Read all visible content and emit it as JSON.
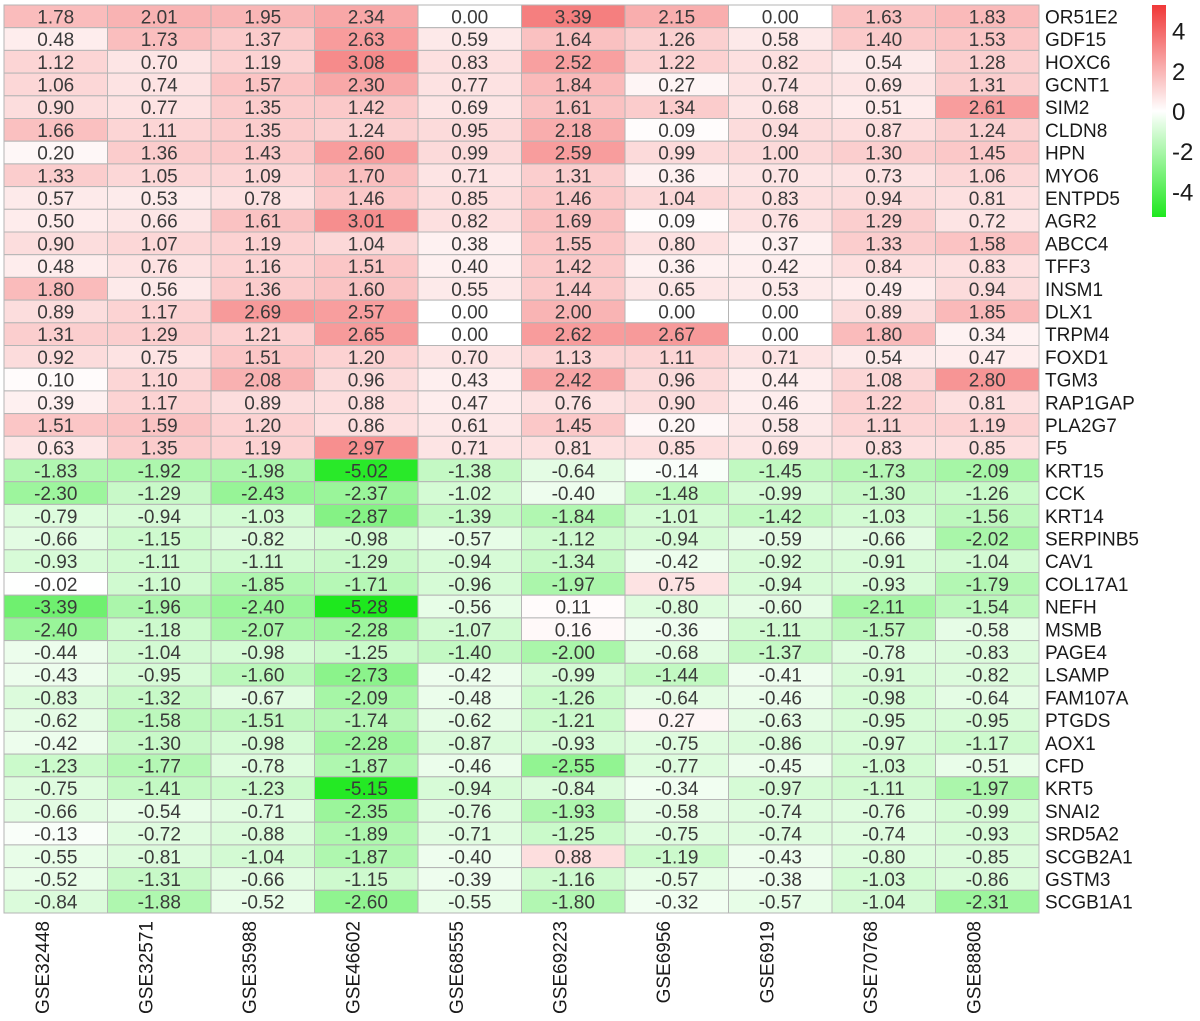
{
  "chart_data": {
    "type": "heatmap",
    "title": "",
    "xlabel": "",
    "ylabel": "",
    "columns": [
      "GSE32448",
      "GSE32571",
      "GSE35988",
      "GSE46602",
      "GSE68555",
      "GSE69223",
      "GSE6956",
      "GSE6919",
      "GSE70768",
      "GSE88808"
    ],
    "rows": [
      "OR51E2",
      "GDF15",
      "HOXC6",
      "GCNT1",
      "SIM2",
      "CLDN8",
      "HPN",
      "MYO6",
      "ENTPD5",
      "AGR2",
      "ABCC4",
      "TFF3",
      "INSM1",
      "DLX1",
      "TRPM4",
      "FOXD1",
      "TGM3",
      "RAP1GAP",
      "PLA2G7",
      "F5",
      "KRT15",
      "CCK",
      "KRT14",
      "SERPINB5",
      "CAV1",
      "COL17A1",
      "NEFH",
      "MSMB",
      "PAGE4",
      "LSAMP",
      "FAM107A",
      "PTGDS",
      "AOX1",
      "CFD",
      "KRT5",
      "SNAI2",
      "SRD5A2",
      "SCGB2A1",
      "GSTM3",
      "SCGB1A1"
    ],
    "values": [
      [
        1.78,
        2.01,
        1.95,
        2.34,
        0.0,
        3.39,
        2.15,
        0.0,
        1.63,
        1.83
      ],
      [
        0.48,
        1.73,
        1.37,
        2.63,
        0.59,
        1.64,
        1.26,
        0.58,
        1.4,
        1.53
      ],
      [
        1.12,
        0.7,
        1.19,
        3.08,
        0.83,
        2.52,
        1.22,
        0.82,
        0.54,
        1.28
      ],
      [
        1.06,
        0.74,
        1.57,
        2.3,
        0.77,
        1.84,
        0.27,
        0.74,
        0.69,
        1.31
      ],
      [
        0.9,
        0.77,
        1.35,
        1.42,
        0.69,
        1.61,
        1.34,
        0.68,
        0.51,
        2.61
      ],
      [
        1.66,
        1.11,
        1.35,
        1.24,
        0.95,
        2.18,
        0.09,
        0.94,
        0.87,
        1.24
      ],
      [
        0.2,
        1.36,
        1.43,
        2.6,
        0.99,
        2.59,
        0.99,
        1.0,
        1.3,
        1.45
      ],
      [
        1.33,
        1.05,
        1.09,
        1.7,
        0.71,
        1.31,
        0.36,
        0.7,
        0.73,
        1.06
      ],
      [
        0.57,
        0.53,
        0.78,
        1.46,
        0.85,
        1.46,
        1.04,
        0.83,
        0.94,
        0.81
      ],
      [
        0.5,
        0.66,
        1.61,
        3.01,
        0.82,
        1.69,
        0.09,
        0.76,
        1.29,
        0.72
      ],
      [
        0.9,
        1.07,
        1.19,
        1.04,
        0.38,
        1.55,
        0.8,
        0.37,
        1.33,
        1.58
      ],
      [
        0.48,
        0.76,
        1.16,
        1.51,
        0.4,
        1.42,
        0.36,
        0.42,
        0.84,
        0.83
      ],
      [
        1.8,
        0.56,
        1.36,
        1.6,
        0.55,
        1.44,
        0.65,
        0.53,
        0.49,
        0.94
      ],
      [
        0.89,
        1.17,
        2.69,
        2.57,
        0.0,
        2.0,
        0.0,
        0.0,
        0.89,
        1.85
      ],
      [
        1.31,
        1.29,
        1.21,
        2.65,
        0.0,
        2.62,
        2.67,
        0.0,
        1.8,
        0.34
      ],
      [
        0.92,
        0.75,
        1.51,
        1.2,
        0.7,
        1.13,
        1.11,
        0.71,
        0.54,
        0.47
      ],
      [
        0.1,
        1.1,
        2.08,
        0.96,
        0.43,
        2.42,
        0.96,
        0.44,
        1.08,
        2.8
      ],
      [
        0.39,
        1.17,
        0.89,
        0.88,
        0.47,
        0.76,
        0.9,
        0.46,
        1.22,
        0.81
      ],
      [
        1.51,
        1.59,
        1.2,
        0.86,
        0.61,
        1.45,
        0.2,
        0.58,
        1.11,
        1.19
      ],
      [
        0.63,
        1.35,
        1.19,
        2.97,
        0.71,
        0.81,
        0.85,
        0.69,
        0.83,
        0.85
      ],
      [
        -1.83,
        -1.92,
        -1.98,
        -5.02,
        -1.38,
        -0.64,
        -0.14,
        -1.45,
        -1.73,
        -2.09
      ],
      [
        -2.3,
        -1.29,
        -2.43,
        -2.37,
        -1.02,
        -0.4,
        -1.48,
        -0.99,
        -1.3,
        -1.26
      ],
      [
        -0.79,
        -0.94,
        -1.03,
        -2.87,
        -1.39,
        -1.84,
        -1.01,
        -1.42,
        -1.03,
        -1.56
      ],
      [
        -0.66,
        -1.15,
        -0.82,
        -0.98,
        -0.57,
        -1.12,
        -0.94,
        -0.59,
        -0.66,
        -2.02
      ],
      [
        -0.93,
        -1.11,
        -1.11,
        -1.29,
        -0.94,
        -1.34,
        -0.42,
        -0.92,
        -0.91,
        -1.04
      ],
      [
        -0.02,
        -1.1,
        -1.85,
        -1.71,
        -0.96,
        -1.97,
        0.75,
        -0.94,
        -0.93,
        -1.79
      ],
      [
        -3.39,
        -1.96,
        -2.4,
        -5.28,
        -0.56,
        0.11,
        -0.8,
        -0.6,
        -2.11,
        -1.54
      ],
      [
        -2.4,
        -1.18,
        -2.07,
        -2.28,
        -1.07,
        0.16,
        -0.36,
        -1.11,
        -1.57,
        -0.58
      ],
      [
        -0.44,
        -1.04,
        -0.98,
        -1.25,
        -1.4,
        -2.0,
        -0.68,
        -1.37,
        -0.78,
        -0.83
      ],
      [
        -0.43,
        -0.95,
        -1.6,
        -2.73,
        -0.42,
        -0.99,
        -1.44,
        -0.41,
        -0.91,
        -0.82
      ],
      [
        -0.83,
        -1.32,
        -0.67,
        -2.09,
        -0.48,
        -1.26,
        -0.64,
        -0.46,
        -0.98,
        -0.64
      ],
      [
        -0.62,
        -1.58,
        -1.51,
        -1.74,
        -0.62,
        -1.21,
        0.27,
        -0.63,
        -0.95,
        -0.95
      ],
      [
        -0.42,
        -1.3,
        -0.98,
        -2.28,
        -0.87,
        -0.93,
        -0.75,
        -0.86,
        -0.97,
        -1.17
      ],
      [
        -1.23,
        -1.77,
        -0.78,
        -1.87,
        -0.46,
        -2.55,
        -0.77,
        -0.45,
        -1.03,
        -0.51
      ],
      [
        -0.75,
        -1.41,
        -1.23,
        -5.15,
        -0.94,
        -0.84,
        -0.34,
        -0.97,
        -1.11,
        -1.97
      ],
      [
        -0.66,
        -0.54,
        -0.71,
        -2.35,
        -0.76,
        -1.93,
        -0.58,
        -0.74,
        -0.76,
        -0.99
      ],
      [
        -0.13,
        -0.72,
        -0.88,
        -1.89,
        -0.71,
        -1.25,
        -0.75,
        -0.74,
        -0.74,
        -0.93
      ],
      [
        -0.55,
        -0.81,
        -1.04,
        -1.87,
        -0.4,
        0.88,
        -1.19,
        -0.43,
        -0.8,
        -0.85
      ],
      [
        -0.52,
        -1.31,
        -0.66,
        -1.15,
        -0.39,
        -1.16,
        -0.57,
        -0.38,
        -1.03,
        -0.86
      ],
      [
        -0.84,
        -1.88,
        -0.52,
        -2.6,
        -0.55,
        -1.8,
        -0.32,
        -0.57,
        -1.04,
        -2.31
      ]
    ],
    "color_scale": {
      "min": -5.28,
      "max": 5.28,
      "low_color": "#1ee81e",
      "mid_color": "#ffffff",
      "high_color": "#f03838"
    },
    "legend": {
      "placement": "top-right",
      "ticks": [
        4,
        2,
        0,
        -2,
        -4
      ]
    },
    "grid": true
  }
}
